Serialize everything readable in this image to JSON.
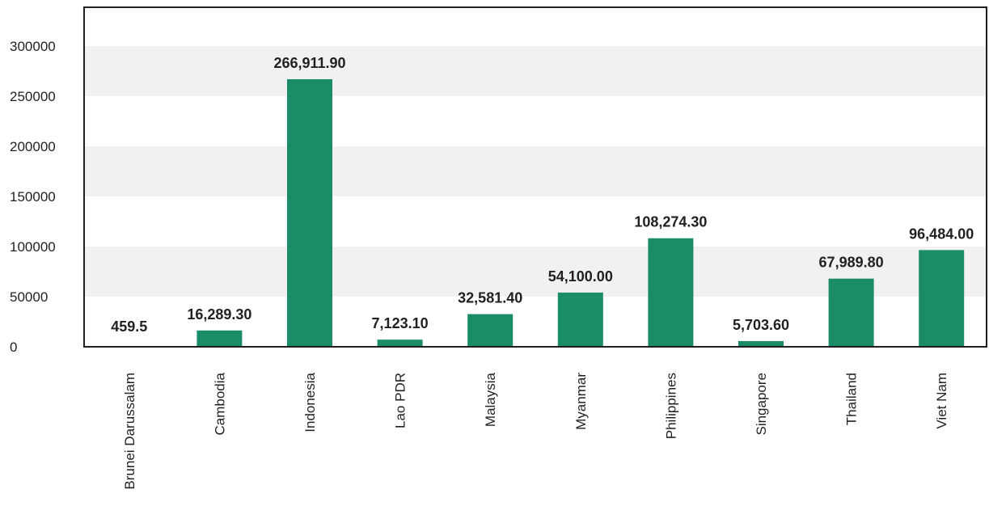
{
  "chart_data": {
    "type": "bar",
    "categories": [
      "Brunei Darussalam",
      "Cambodia",
      "Indonesia",
      "Lao PDR",
      "Malaysia",
      "Myanmar",
      "Philippines",
      "Singapore",
      "Thailand",
      "Viet Nam"
    ],
    "values": [
      459.5,
      16289.3,
      266911.9,
      7123.1,
      32581.4,
      54100.0,
      108274.3,
      5703.6,
      67989.8,
      96484.0
    ],
    "data_labels": [
      "459.5",
      "16,289.30",
      "266,911.90",
      "7,123.10",
      "32,581.40",
      "54,100.00",
      "108,274.30",
      "5,703.60",
      "67,989.80",
      "96,484.00"
    ],
    "title": "",
    "xlabel": "",
    "ylabel": "",
    "ylim": [
      0,
      300000
    ],
    "yticks": [
      0,
      50000,
      100000,
      150000,
      200000,
      250000,
      300000
    ],
    "ytick_labels": [
      "0",
      "50000",
      "100000",
      "150000",
      "200000",
      "250000",
      "300000"
    ],
    "grid": "alternating horizontal bands",
    "legend": "none",
    "colors": {
      "bar": "#1a8c68",
      "band": "#f1f1f1",
      "axis": "#231f20",
      "text": "#231f20"
    }
  }
}
